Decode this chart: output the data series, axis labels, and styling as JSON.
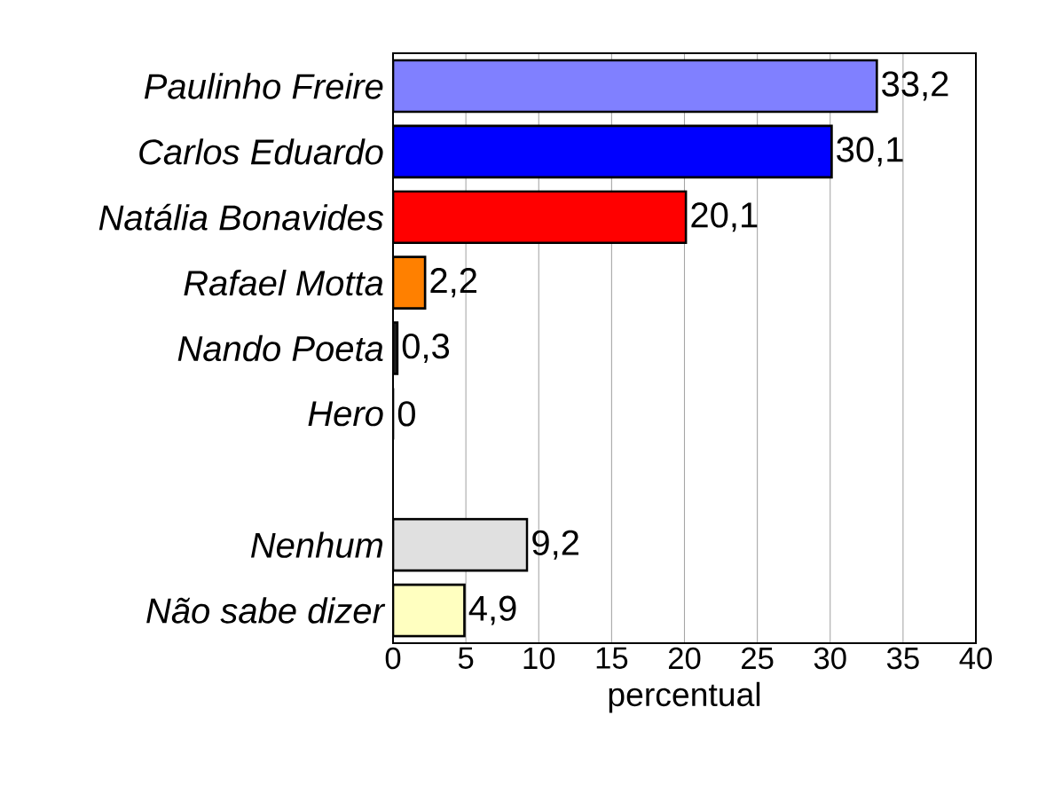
{
  "chart_data": {
    "type": "bar",
    "orientation": "horizontal",
    "xlabel": "percentual",
    "categories": [
      "Paulinho Freire",
      "Carlos Eduardo",
      "Natália Bonavides",
      "Rafael Motta",
      "Nando Poeta",
      "Hero",
      null,
      "Nenhum",
      "Não sabe dizer"
    ],
    "values": [
      33.2,
      30.1,
      20.1,
      2.2,
      0.3,
      0,
      null,
      9.2,
      4.9
    ],
    "value_labels": [
      "33,2",
      "30,1",
      "20,1",
      "2,2",
      "0,3",
      "0",
      null,
      "9,2",
      "4,9"
    ],
    "colors": [
      "#8080ff",
      "#0000ff",
      "#ff0000",
      "#ff8000",
      "#202020",
      "#000000",
      "#ffffff",
      "#e0e0e0",
      "#ffffc0"
    ],
    "xlim": [
      0,
      40
    ],
    "xticks": [
      0,
      5,
      10,
      15,
      20,
      25,
      30,
      35,
      40
    ],
    "grid": "x"
  }
}
